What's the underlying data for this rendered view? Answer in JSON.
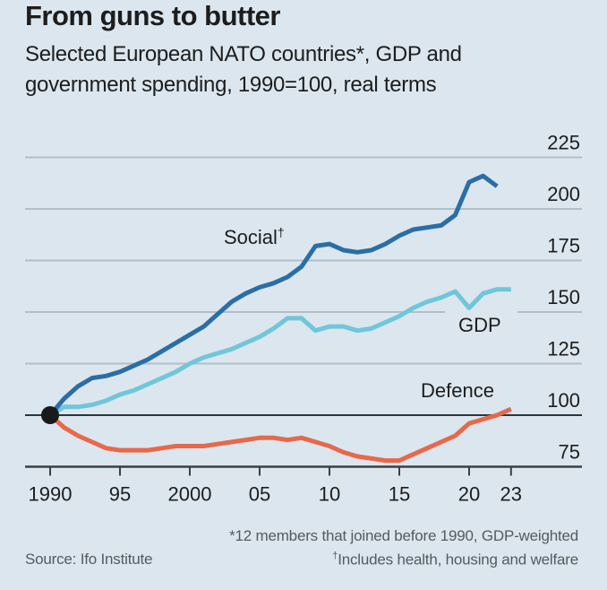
{
  "chart_data": {
    "type": "line",
    "title": "From guns to butter",
    "subtitle": "Selected European NATO countries*, GDP and government spending, 1990=100, real terms",
    "xlabel": "",
    "ylabel": "",
    "ylim": [
      75,
      225
    ],
    "xlim": [
      1990,
      2023
    ],
    "yticks": [
      225,
      200,
      175,
      150,
      125,
      100,
      75
    ],
    "ytick_labels": [
      "225",
      "200",
      "175",
      "150",
      "125",
      "100",
      "75"
    ],
    "xticks": [
      1990,
      1995,
      2000,
      2005,
      2010,
      2015,
      2020,
      2023
    ],
    "xtick_labels": [
      "1990",
      "95",
      "2000",
      "05",
      "10",
      "15",
      "20",
      "23"
    ],
    "grid": true,
    "baseline": 100,
    "series": [
      {
        "name": "Social",
        "label": "Social",
        "label_mark": "†",
        "color": "#2a6ea6",
        "x": [
          1990,
          1991,
          1992,
          1993,
          1994,
          1995,
          1996,
          1997,
          1998,
          1999,
          2000,
          2001,
          2002,
          2003,
          2004,
          2005,
          2006,
          2007,
          2008,
          2009,
          2010,
          2011,
          2012,
          2013,
          2014,
          2015,
          2016,
          2017,
          2018,
          2019,
          2020,
          2021,
          2022
        ],
        "values": [
          100,
          108,
          114,
          118,
          119,
          121,
          124,
          127,
          131,
          135,
          139,
          143,
          149,
          155,
          159,
          162,
          164,
          167,
          172,
          182,
          183,
          180,
          179,
          180,
          183,
          187,
          190,
          191,
          192,
          197,
          213,
          216,
          211
        ]
      },
      {
        "name": "GDP",
        "label": "GDP",
        "color": "#70c6da",
        "x": [
          1990,
          1991,
          1992,
          1993,
          1994,
          1995,
          1996,
          1997,
          1998,
          1999,
          2000,
          2001,
          2002,
          2003,
          2004,
          2005,
          2006,
          2007,
          2008,
          2009,
          2010,
          2011,
          2012,
          2013,
          2014,
          2015,
          2016,
          2017,
          2018,
          2019,
          2020,
          2021,
          2022,
          2023
        ],
        "values": [
          100,
          104,
          104,
          105,
          107,
          110,
          112,
          115,
          118,
          121,
          125,
          128,
          130,
          132,
          135,
          138,
          142,
          147,
          147,
          141,
          143,
          143,
          141,
          142,
          145,
          148,
          152,
          155,
          157,
          160,
          152,
          159,
          161,
          161
        ]
      },
      {
        "name": "Defence",
        "label": "Defence",
        "color": "#e8684a",
        "x": [
          1990,
          1991,
          1992,
          1993,
          1994,
          1995,
          1996,
          1997,
          1998,
          1999,
          2000,
          2001,
          2002,
          2003,
          2004,
          2005,
          2006,
          2007,
          2008,
          2009,
          2010,
          2011,
          2012,
          2013,
          2014,
          2015,
          2016,
          2017,
          2018,
          2019,
          2020,
          2021,
          2022,
          2023
        ],
        "values": [
          100,
          94,
          90,
          87,
          84,
          83,
          83,
          83,
          84,
          85,
          85,
          85,
          86,
          87,
          88,
          89,
          89,
          88,
          89,
          87,
          85,
          82,
          80,
          79,
          78,
          78,
          81,
          84,
          87,
          90,
          96,
          98,
          100,
          103
        ]
      }
    ],
    "origin_marker": {
      "x": 1990,
      "y": 100,
      "color": "#1a1a1a"
    },
    "footnotes": [
      "*12 members that joined before 1990, GDP-weighted",
      "†Includes health, housing and welfare"
    ],
    "source": "Source: Ifo Institute"
  },
  "colors": {
    "background": "#dbe6ee",
    "grid": "#b3bfc8",
    "axis": "#3a3f44"
  }
}
